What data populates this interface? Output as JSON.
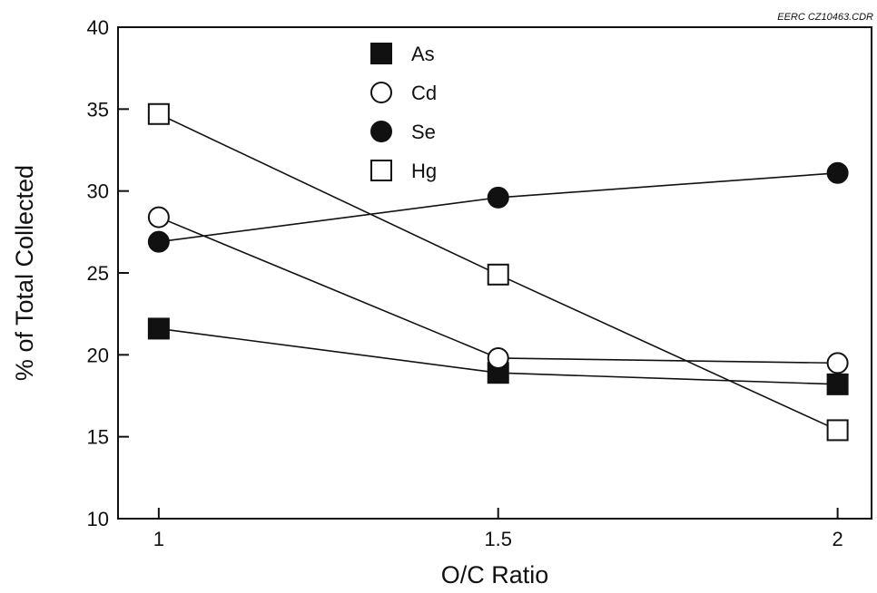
{
  "credit": "EERC CZ10463.CDR",
  "chart_data": {
    "type": "line",
    "title": "",
    "xlabel": "O/C Ratio",
    "ylabel": "% of Total Collected",
    "x": [
      1,
      1.5,
      2
    ],
    "x_ticks": [
      "1",
      "1.5",
      "2"
    ],
    "y_ticks": [
      "10",
      "15",
      "20",
      "25",
      "30",
      "35",
      "40"
    ],
    "xlim": [
      0.94,
      2.05
    ],
    "ylim": [
      10,
      40
    ],
    "grid": false,
    "legend_position": "top-center",
    "series": [
      {
        "name": "As",
        "marker": "filled-square",
        "values": [
          21.6,
          18.9,
          18.2
        ]
      },
      {
        "name": "Cd",
        "marker": "open-circle",
        "values": [
          28.4,
          19.8,
          19.5
        ]
      },
      {
        "name": "Se",
        "marker": "filled-circle",
        "values": [
          26.9,
          29.6,
          31.1
        ]
      },
      {
        "name": "Hg",
        "marker": "open-square",
        "values": [
          34.7,
          24.9,
          15.4
        ]
      }
    ],
    "colors": {
      "ink": "#111111",
      "background": "#ffffff"
    }
  }
}
